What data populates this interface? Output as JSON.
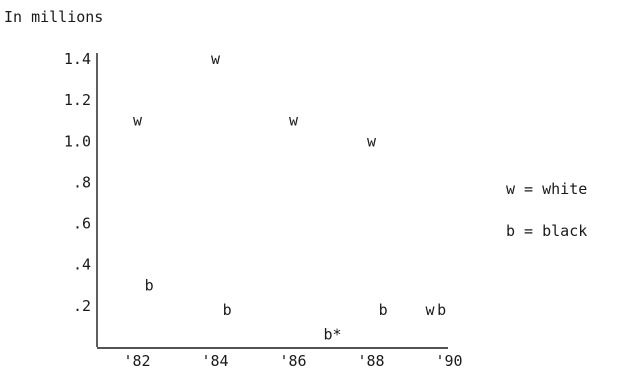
{
  "chart_data": {
    "type": "scatter",
    "title": "In millions",
    "x": [
      "'82",
      "'84",
      "'86",
      "'88",
      "'90"
    ],
    "xlim": [
      1982,
      1990
    ],
    "ylim": [
      0,
      1.4
    ],
    "yticks": [
      1.4,
      1.2,
      1.0,
      0.8,
      0.6,
      0.4,
      0.2
    ],
    "ytick_labels": [
      "1.4",
      "1.2",
      "1.0",
      ".8",
      ".6",
      ".4",
      ".2"
    ],
    "grid": false,
    "legend": {
      "placement": "right",
      "entries": [
        {
          "symbol": "w",
          "label": "w = white"
        },
        {
          "symbol": "b",
          "label": "b = black"
        }
      ]
    },
    "series": [
      {
        "symbol": "w",
        "points": [
          {
            "x": 1982.5,
            "y": 1.1
          },
          {
            "x": 1984.5,
            "y": 1.4
          },
          {
            "x": 1986.5,
            "y": 1.1
          },
          {
            "x": 1988.5,
            "y": 1.0
          },
          {
            "x": 1990,
            "y": 0.18
          }
        ]
      },
      {
        "symbol": "b",
        "points": [
          {
            "x": 1982.8,
            "y": 0.3
          },
          {
            "x": 1984.8,
            "y": 0.18
          },
          {
            "x": 1987.5,
            "y": 0.06,
            "label": "b*"
          },
          {
            "x": 1988.8,
            "y": 0.18
          },
          {
            "x": 1990.3,
            "y": 0.18
          }
        ]
      }
    ]
  }
}
